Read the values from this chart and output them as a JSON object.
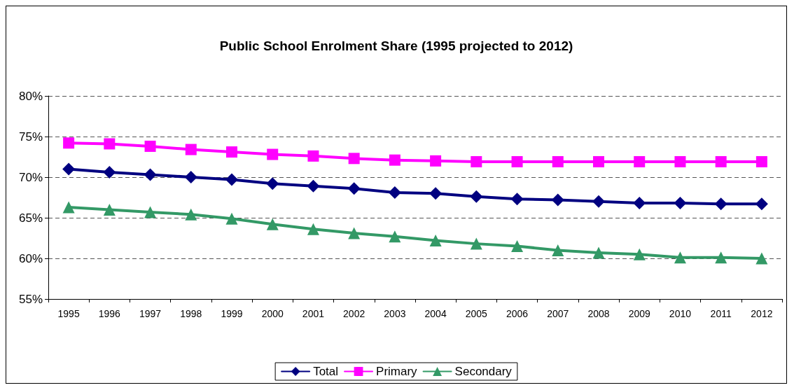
{
  "chart_data": {
    "type": "line",
    "title": "Public School Enrolment Share (1995 projected to 2012)",
    "categories": [
      "1995",
      "1996",
      "1997",
      "1998",
      "1999",
      "2000",
      "2001",
      "2002",
      "2003",
      "2004",
      "2005",
      "2006",
      "2007",
      "2008",
      "2009",
      "2010",
      "2011",
      "2012"
    ],
    "series": [
      {
        "name": "Total",
        "color": "#000080",
        "marker": "diamond",
        "values": [
          71.0,
          70.6,
          70.3,
          70.0,
          69.7,
          69.2,
          68.9,
          68.6,
          68.1,
          68.0,
          67.6,
          67.3,
          67.2,
          67.0,
          66.8,
          66.8,
          66.7,
          66.7
        ]
      },
      {
        "name": "Primary",
        "color": "#ff00ff",
        "marker": "square",
        "values": [
          74.2,
          74.1,
          73.8,
          73.4,
          73.1,
          72.8,
          72.6,
          72.3,
          72.1,
          72.0,
          71.9,
          71.9,
          71.9,
          71.9,
          71.9,
          71.9,
          71.9,
          71.9
        ]
      },
      {
        "name": "Secondary",
        "color": "#339966",
        "marker": "triangle",
        "values": [
          66.3,
          66.0,
          65.7,
          65.4,
          64.9,
          64.2,
          63.6,
          63.1,
          62.7,
          62.2,
          61.8,
          61.5,
          61.0,
          60.7,
          60.5,
          60.1,
          60.1,
          60.0
        ]
      }
    ],
    "ylim": [
      55,
      80
    ],
    "yticks": [
      {
        "value": 55,
        "label": "55%"
      },
      {
        "value": 60,
        "label": "60%"
      },
      {
        "value": 65,
        "label": "65%"
      },
      {
        "value": 70,
        "label": "70%"
      },
      {
        "value": 75,
        "label": "75%"
      },
      {
        "value": 80,
        "label": "80%"
      }
    ],
    "grid": "y",
    "legend": "bottom",
    "line_style": "solid"
  }
}
